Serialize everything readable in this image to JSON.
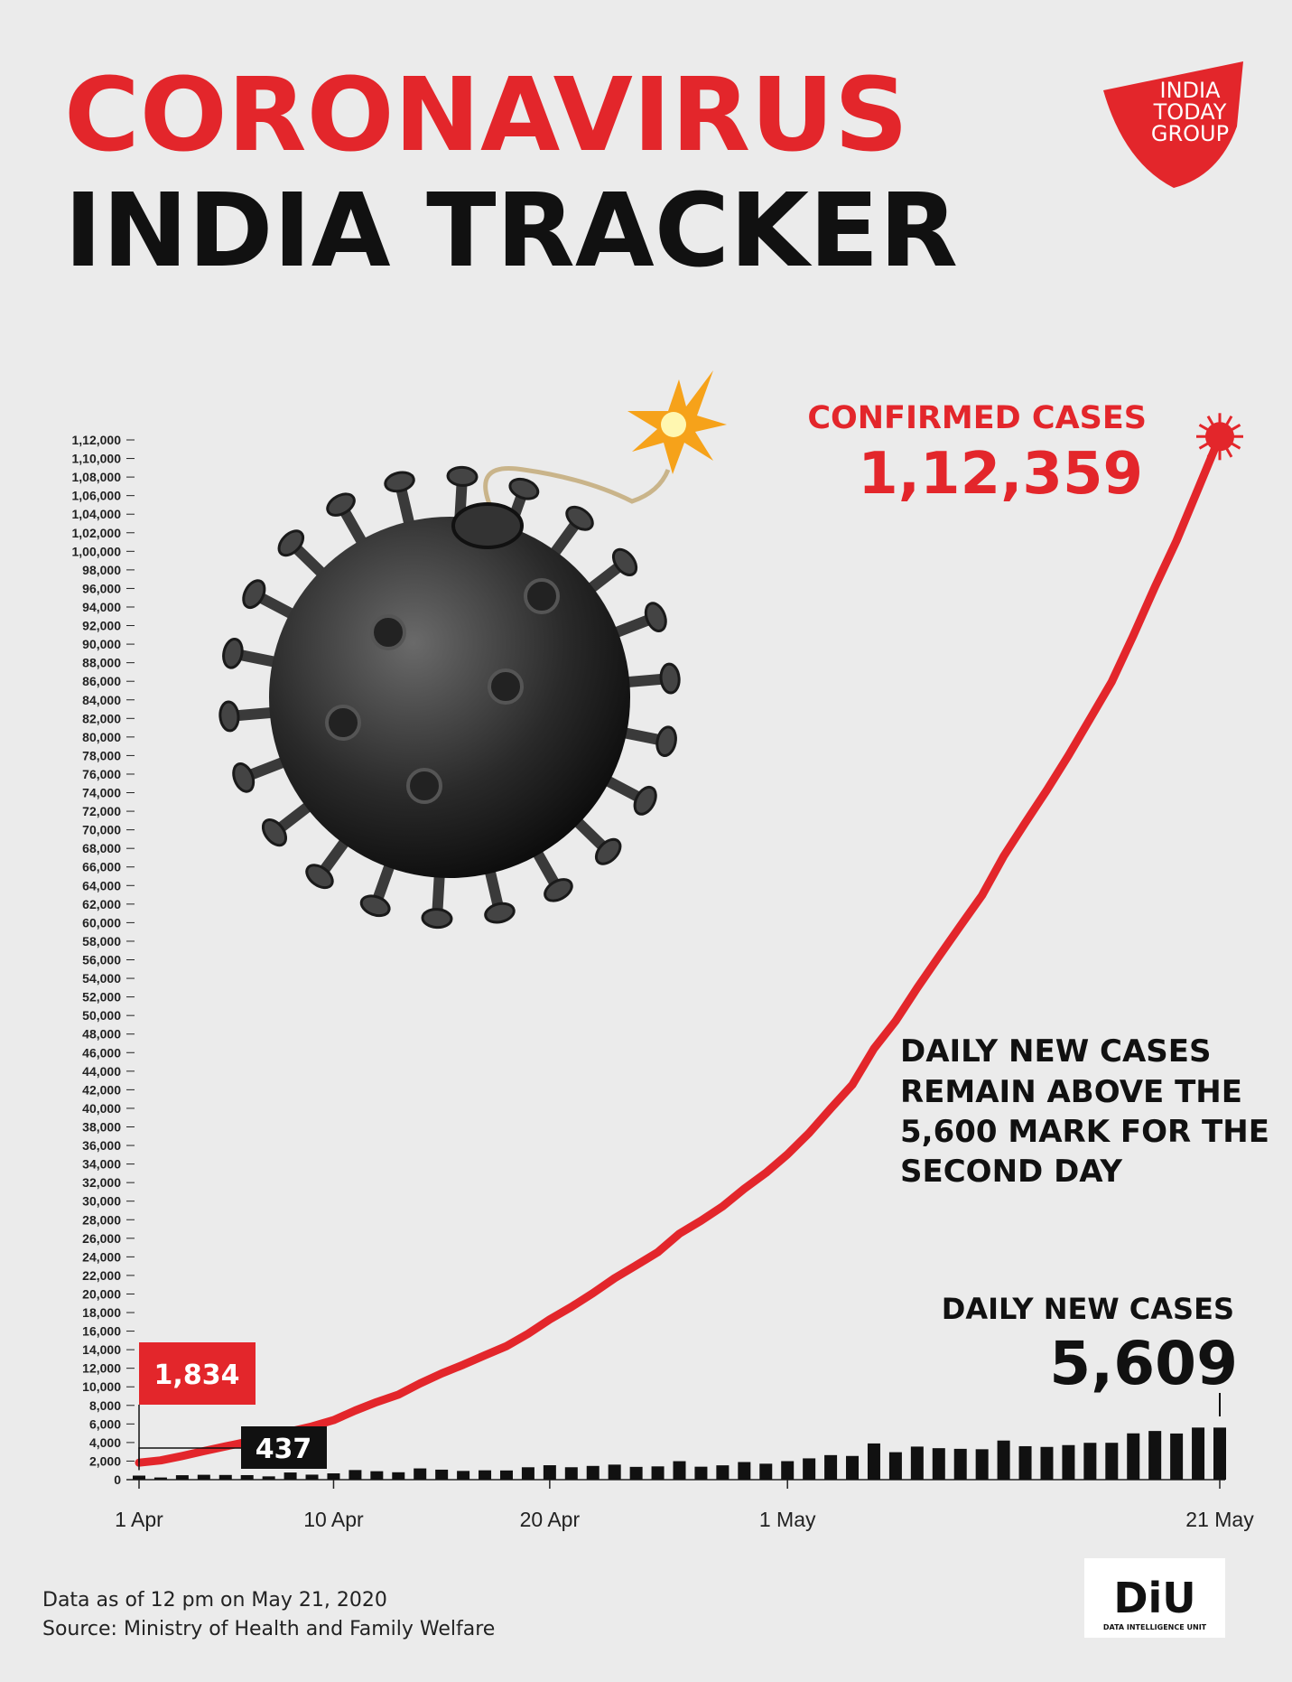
{
  "title": "CORONAVIRUS",
  "subtitle": "INDIA TRACKER",
  "logos": {
    "india_today": [
      "INDIA",
      "TODAY",
      "GROUP"
    ],
    "diu": "DiU",
    "diu_sub": "DATA INTELLIGENCE UNIT"
  },
  "notes": [
    "Data as of 12 pm on May 21, 2020",
    "Source: Ministry of Health and Family Welfare"
  ],
  "chart_data": {
    "type": "line-bar",
    "categories": [
      "1 Apr",
      null,
      null,
      null,
      null,
      null,
      null,
      null,
      null,
      "10 Apr",
      null,
      null,
      null,
      null,
      null,
      null,
      null,
      null,
      null,
      "20 Apr",
      null,
      null,
      null,
      null,
      null,
      null,
      null,
      null,
      null,
      null,
      "1 May",
      null,
      null,
      null,
      null,
      null,
      null,
      null,
      null,
      null,
      null,
      null,
      null,
      null,
      null,
      null,
      null,
      null,
      null,
      null,
      "21 May"
    ],
    "series": [
      {
        "name": "CONFIRMED CASES",
        "type": "line",
        "color": "#e3262b",
        "values": [
          1834,
          2069,
          2547,
          3072,
          3577,
          4067,
          4421,
          5194,
          5734,
          6412,
          7447,
          8356,
          9152,
          10363,
          11439,
          12380,
          13387,
          14378,
          15712,
          17265,
          18601,
          20080,
          21700,
          23077,
          24506,
          26496,
          27892,
          29435,
          31332,
          33050,
          35043,
          37336,
          39980,
          42533,
          46433,
          49391,
          52952,
          56342,
          59662,
          62939,
          67152,
          70756,
          74281,
          78003,
          81970,
          85940,
          90927,
          96169,
          101139,
          106750,
          112359
        ],
        "value_labels": [
          "1,834",
          null,
          null,
          null,
          null,
          null,
          null,
          null,
          null,
          null,
          null,
          null,
          null,
          null,
          null,
          null,
          null,
          null,
          null,
          null,
          null,
          null,
          null,
          null,
          null,
          null,
          null,
          null,
          null,
          null,
          null,
          null,
          null,
          null,
          null,
          null,
          null,
          null,
          null,
          null,
          null,
          null,
          null,
          null,
          null,
          null,
          null,
          null,
          null,
          null,
          "1,12,359"
        ]
      },
      {
        "name": "DAILY NEW CASES",
        "type": "bar",
        "color": "#111111",
        "values": [
          437,
          235,
          478,
          525,
          505,
          490,
          354,
          773,
          540,
          678,
          1035,
          909,
          796,
          1211,
          1076,
          941,
          1007,
          991,
          1334,
          1553,
          1336,
          1479,
          1620,
          1377,
          1429,
          1990,
          1396,
          1543,
          1897,
          1718,
          1993,
          2293,
          2644,
          2553,
          3900,
          2958,
          3561,
          3390,
          3320,
          3277,
          4213,
          3604,
          3525,
          3722,
          3967,
          3970,
          4987,
          5242,
          4970,
          5611,
          5609
        ],
        "value_labels": [
          "437",
          null,
          null,
          null,
          null,
          null,
          null,
          null,
          null,
          null,
          null,
          null,
          null,
          null,
          null,
          null,
          null,
          null,
          null,
          null,
          null,
          null,
          null,
          null,
          null,
          null,
          null,
          null,
          null,
          null,
          null,
          null,
          null,
          null,
          null,
          null,
          null,
          null,
          null,
          null,
          null,
          null,
          null,
          null,
          null,
          null,
          null,
          null,
          null,
          null,
          "5,609"
        ]
      }
    ],
    "annotation": [
      "DAILY NEW CASES",
      "REMAIN ABOVE THE",
      "5,600 MARK FOR THE",
      "SECOND DAY"
    ],
    "ylim": [
      0,
      112000
    ],
    "yticks": [
      0,
      {
        "value": 2000,
        "label": "2,000"
      },
      {
        "value": 4000,
        "label": "4,000"
      },
      {
        "value": 6000,
        "label": "6,000"
      },
      {
        "value": 8000,
        "label": "8,000"
      },
      {
        "value": 10000,
        "label": "10,000"
      },
      {
        "value": 12000,
        "label": "12,000"
      },
      {
        "value": 14000,
        "label": "14,000"
      },
      {
        "value": 16000,
        "label": "16,000"
      },
      {
        "value": 18000,
        "label": "18,000"
      },
      {
        "value": 20000,
        "label": "20,000"
      },
      {
        "value": 22000,
        "label": "22,000"
      },
      {
        "value": 24000,
        "label": "24,000"
      },
      {
        "value": 26000,
        "label": "26,000"
      },
      {
        "value": 28000,
        "label": "28,000"
      },
      {
        "value": 30000,
        "label": "30,000"
      },
      {
        "value": 32000,
        "label": "32,000"
      },
      {
        "value": 34000,
        "label": "34,000"
      },
      {
        "value": 36000,
        "label": "36,000"
      },
      {
        "value": 38000,
        "label": "38,000"
      },
      {
        "value": 40000,
        "label": "40,000"
      },
      {
        "value": 42000,
        "label": "42,000"
      },
      {
        "value": 44000,
        "label": "44,000"
      },
      {
        "value": 46000,
        "label": "46,000"
      },
      {
        "value": 48000,
        "label": "48,000"
      },
      {
        "value": 50000,
        "label": "50,000"
      },
      {
        "value": 52000,
        "label": "52,000"
      },
      {
        "value": 54000,
        "label": "54,000"
      },
      {
        "value": 56000,
        "label": "56,000"
      },
      {
        "value": 58000,
        "label": "58,000"
      },
      {
        "value": 60000,
        "label": "60,000"
      },
      {
        "value": 62000,
        "label": "62,000"
      },
      {
        "value": 64000,
        "label": "64,000"
      },
      {
        "value": 66000,
        "label": "66,000"
      },
      {
        "value": 68000,
        "label": "68,000"
      },
      {
        "value": 70000,
        "label": "70,000"
      },
      {
        "value": 72000,
        "label": "72,000"
      },
      {
        "value": 74000,
        "label": "74,000"
      },
      {
        "value": 76000,
        "label": "76,000"
      },
      {
        "value": 78000,
        "label": "78,000"
      },
      {
        "value": 80000,
        "label": "80,000"
      },
      {
        "value": 82000,
        "label": "82,000"
      },
      {
        "value": 84000,
        "label": "84,000"
      },
      {
        "value": 86000,
        "label": "86,000"
      },
      {
        "value": 88000,
        "label": "88,000"
      },
      {
        "value": 90000,
        "label": "90,000"
      },
      {
        "value": 92000,
        "label": "92,000"
      },
      {
        "value": 94000,
        "label": "94,000"
      },
      {
        "value": 96000,
        "label": "96,000"
      },
      {
        "value": 98000,
        "label": "98,000"
      },
      {
        "value": 100000,
        "label": "1,00,000"
      },
      {
        "value": 102000,
        "label": "1,02,000"
      },
      {
        "value": 104000,
        "label": "1,04,000"
      },
      {
        "value": 106000,
        "label": "1,06,000"
      },
      {
        "value": 108000,
        "label": "1,08,000"
      },
      {
        "value": 110000,
        "label": "1,10,000"
      },
      {
        "value": 112000,
        "label": "1,12,000"
      }
    ],
    "grid": false
  }
}
